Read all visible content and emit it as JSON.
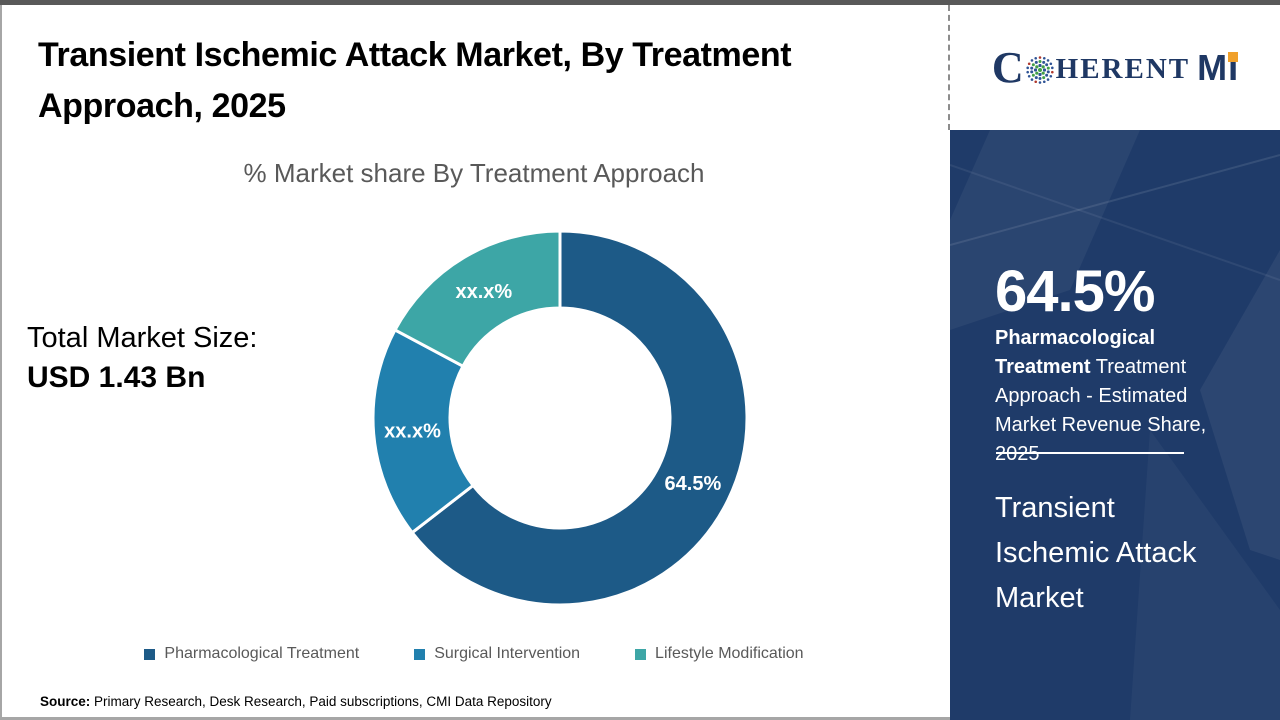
{
  "page": {
    "title": "Transient Ischemic Attack Market, By Treatment Approach, 2025",
    "subtitle": "% Market share By Treatment Approach",
    "total_market_label": "Total Market Size:",
    "total_market_value": "USD 1.43 Bn",
    "source_label": "Source:",
    "source_text": " Primary Research, Desk Research, Paid subscriptions, CMI Data Repository"
  },
  "logo": {
    "c": "C",
    "herent": "HERENT",
    "m": "M",
    "i": "I"
  },
  "chart_data": {
    "type": "pie",
    "variant": "donut",
    "title": "% Market share By Treatment Approach",
    "direction": "clockwise",
    "start_angle_deg": 0,
    "legend_position": "bottom",
    "segments": [
      {
        "label": "Pharmacological Treatment",
        "value": 64.5,
        "display": "64.5%",
        "color": "#1d5a87"
      },
      {
        "label": "Surgical Intervention",
        "value": 18.3,
        "display": "xx.x%",
        "color": "#2180ae"
      },
      {
        "label": "Lifestyle Modification",
        "value": 17.2,
        "display": "xx.x%",
        "color": "#3da6a6"
      }
    ]
  },
  "sidebar": {
    "stat_value": "64.5%",
    "stat_label_bold": "Pharmacological Treatment",
    "stat_label_rest": " Treatment Approach - Estimated Market Revenue Share, 2025",
    "market_name": "Transient Ischemic Attack Market"
  },
  "colors": {
    "sidebar_bg": "#1f3b69",
    "brand_navy": "#1f3864",
    "brand_orange": "#f0a02a",
    "top_bar": "#595959"
  }
}
